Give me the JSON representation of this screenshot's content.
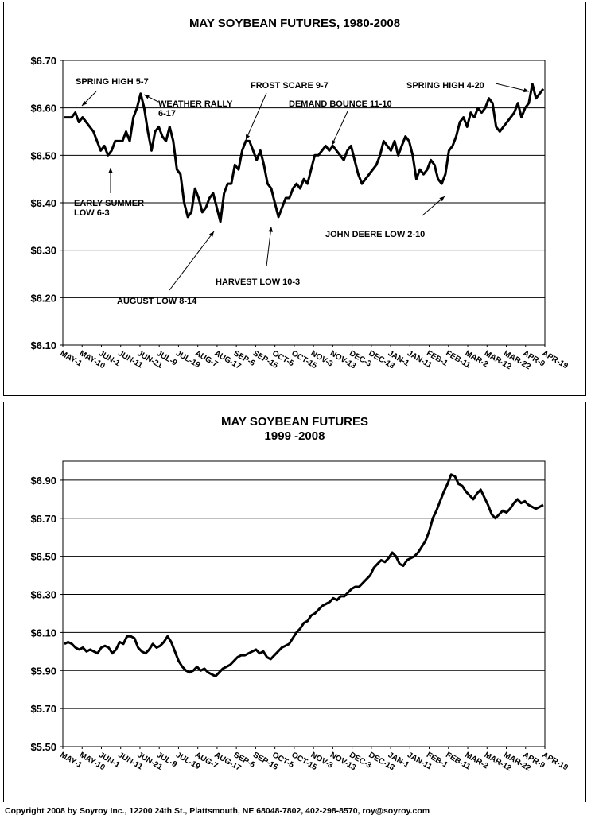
{
  "chart_data": [
    {
      "type": "line",
      "title": "MAY SOYBEAN FUTURES, 1980-2008",
      "ylim": [
        6.1,
        6.7
      ],
      "yticks": [
        "$6.70",
        "$6.60",
        "$6.50",
        "$6.40",
        "$6.30",
        "$6.20",
        "$6.10"
      ],
      "ytick_values": [
        6.7,
        6.6,
        6.5,
        6.4,
        6.3,
        6.2,
        6.1
      ],
      "xticks": [
        "MAY-1",
        "MAY-10",
        "JUN-1",
        "JUN-11",
        "JUN-21",
        "JUL-9",
        "JUL-19",
        "AUG-7",
        "AUG-17",
        "SEP-6",
        "SEP-16",
        "OCT-5",
        "OCT-15",
        "NOV-3",
        "NOV-13",
        "DEC-3",
        "DEC-13",
        "JAN-1",
        "JAN-11",
        "FEB-1",
        "FEB-11",
        "MAR-2",
        "MAR-12",
        "MAR-22",
        "APR-9",
        "APR-19"
      ],
      "grid": true,
      "series": [
        {
          "values": [
            6.58,
            6.58,
            6.58,
            6.59,
            6.57,
            6.58,
            6.57,
            6.56,
            6.55,
            6.53,
            6.51,
            6.52,
            6.5,
            6.51,
            6.53,
            6.53,
            6.53,
            6.55,
            6.53,
            6.58,
            6.6,
            6.63,
            6.6,
            6.55,
            6.51,
            6.55,
            6.56,
            6.54,
            6.53,
            6.56,
            6.53,
            6.47,
            6.46,
            6.4,
            6.37,
            6.38,
            6.43,
            6.41,
            6.38,
            6.39,
            6.41,
            6.42,
            6.39,
            6.36,
            6.42,
            6.44,
            6.44,
            6.48,
            6.47,
            6.51,
            6.53,
            6.53,
            6.51,
            6.49,
            6.51,
            6.48,
            6.44,
            6.43,
            6.4,
            6.37,
            6.39,
            6.41,
            6.41,
            6.43,
            6.44,
            6.43,
            6.45,
            6.44,
            6.47,
            6.5,
            6.5,
            6.51,
            6.52,
            6.51,
            6.52,
            6.51,
            6.5,
            6.49,
            6.51,
            6.52,
            6.49,
            6.46,
            6.44,
            6.45,
            6.46,
            6.47,
            6.48,
            6.5,
            6.53,
            6.52,
            6.51,
            6.53,
            6.5,
            6.52,
            6.54,
            6.53,
            6.5,
            6.45,
            6.47,
            6.46,
            6.47,
            6.49,
            6.48,
            6.45,
            6.44,
            6.46,
            6.51,
            6.52,
            6.54,
            6.57,
            6.58,
            6.56,
            6.59,
            6.58,
            6.6,
            6.59,
            6.6,
            6.62,
            6.61,
            6.56,
            6.55,
            6.56,
            6.57,
            6.58,
            6.59,
            6.61,
            6.58,
            6.6,
            6.61,
            6.65,
            6.62,
            6.63,
            6.64
          ],
          "color": "#000000"
        }
      ],
      "annotations": [
        {
          "lines": [
            "SPRING HIGH 5-7"
          ]
        },
        {
          "lines": [
            "WEATHER RALLY",
            "6-17"
          ]
        },
        {
          "lines": [
            "FROST SCARE 9-7"
          ]
        },
        {
          "lines": [
            "DEMAND BOUNCE 11-10"
          ]
        },
        {
          "lines": [
            "SPRING HIGH 4-20"
          ]
        },
        {
          "lines": [
            "EARLY SUMMER",
            "LOW 6-3"
          ]
        },
        {
          "lines": [
            "JOHN DEERE LOW 2-10"
          ]
        },
        {
          "lines": [
            "HARVEST LOW 10-3"
          ]
        },
        {
          "lines": [
            "AUGUST LOW 8-14"
          ]
        }
      ]
    },
    {
      "type": "line",
      "title": "MAY SOYBEAN FUTURES",
      "subtitle": "1999 -2008",
      "ylim": [
        5.5,
        7.0
      ],
      "yticks": [
        "$6.90",
        "$6.70",
        "$6.50",
        "$6.30",
        "$6.10",
        "$5.90",
        "$5.70",
        "$5.50"
      ],
      "ytick_values": [
        6.9,
        6.7,
        6.5,
        6.3,
        6.1,
        5.9,
        5.7,
        5.5
      ],
      "xticks": [
        "MAY-1",
        "MAY-10",
        "JUN-1",
        "JUN-11",
        "JUN-21",
        "JUL-9",
        "JUL-19",
        "AUG-7",
        "AUG-17",
        "SEP-6",
        "SEP-16",
        "OCT-5",
        "OCT-15",
        "NOV-3",
        "NOV-13",
        "DEC-3",
        "DEC-13",
        "JAN-1",
        "JAN-11",
        "FEB-1",
        "FEB-11",
        "MAR-2",
        "MAR-12",
        "MAR-22",
        "APR-9",
        "APR-19"
      ],
      "grid": true,
      "series": [
        {
          "values": [
            6.04,
            6.05,
            6.04,
            6.02,
            6.01,
            6.02,
            6.0,
            6.01,
            6.0,
            5.99,
            6.02,
            6.03,
            6.02,
            5.99,
            6.01,
            6.05,
            6.04,
            6.08,
            6.08,
            6.07,
            6.02,
            6.0,
            5.99,
            6.01,
            6.04,
            6.02,
            6.03,
            6.05,
            6.08,
            6.05,
            6.0,
            5.95,
            5.92,
            5.9,
            5.89,
            5.9,
            5.92,
            5.9,
            5.91,
            5.89,
            5.88,
            5.87,
            5.89,
            5.91,
            5.92,
            5.93,
            5.95,
            5.97,
            5.98,
            5.98,
            5.99,
            6.0,
            6.01,
            5.99,
            6.0,
            5.97,
            5.96,
            5.98,
            6.0,
            6.02,
            6.03,
            6.04,
            6.07,
            6.1,
            6.12,
            6.15,
            6.16,
            6.19,
            6.2,
            6.22,
            6.24,
            6.25,
            6.26,
            6.28,
            6.27,
            6.29,
            6.29,
            6.31,
            6.33,
            6.34,
            6.34,
            6.36,
            6.38,
            6.4,
            6.44,
            6.46,
            6.48,
            6.47,
            6.49,
            6.52,
            6.5,
            6.46,
            6.45,
            6.48,
            6.49,
            6.5,
            6.52,
            6.55,
            6.58,
            6.63,
            6.7,
            6.74,
            6.79,
            6.84,
            6.88,
            6.93,
            6.92,
            6.88,
            6.87,
            6.84,
            6.82,
            6.8,
            6.83,
            6.85,
            6.81,
            6.77,
            6.72,
            6.7,
            6.72,
            6.74,
            6.73,
            6.75,
            6.78,
            6.8,
            6.78,
            6.79,
            6.77,
            6.76,
            6.75,
            6.76,
            6.77
          ],
          "color": "#000000"
        }
      ]
    }
  ],
  "copyright": "Copyright 2008 by Soyroy Inc., 12200 24th St., Plattsmouth, NE 68048-7802, 402-298-8570, roy@soyroy.com"
}
